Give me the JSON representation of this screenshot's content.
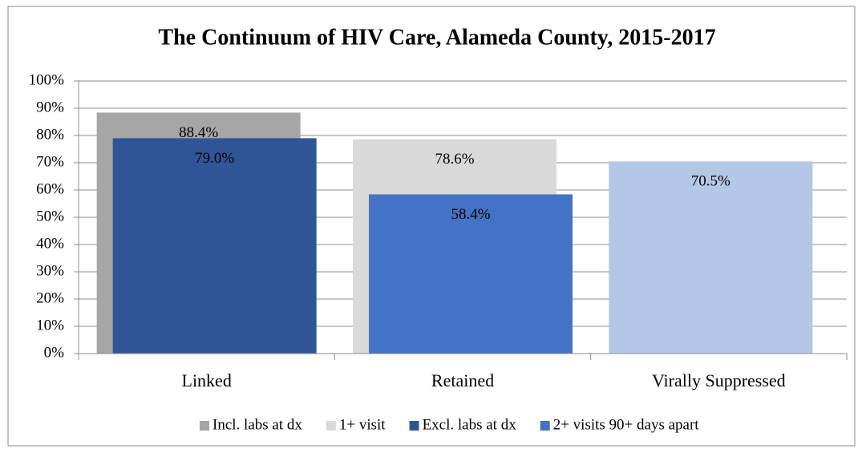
{
  "chart_data": {
    "type": "bar",
    "title": "The Continuum of  HIV Care, Alameda County, 2015-2017",
    "categories": [
      "Linked",
      "Retained",
      "Virally Suppressed"
    ],
    "series": [
      {
        "name": "Incl. labs at dx",
        "color": "#a6a6a6",
        "values": [
          88.4,
          null,
          null
        ],
        "value_labels": [
          "88.4%",
          null,
          null
        ]
      },
      {
        "name": "1+ visit",
        "color": "#d9d9d9",
        "values": [
          null,
          78.6,
          null
        ],
        "value_labels": [
          null,
          "78.6%",
          null
        ]
      },
      {
        "color": "#b4c7e7",
        "values": [
          null,
          null,
          70.5
        ],
        "value_labels": [
          null,
          null,
          "70.5%"
        ]
      },
      {
        "name": "Excl. labs at dx",
        "color": "#2f5597",
        "values": [
          79.0,
          null,
          null
        ],
        "value_labels": [
          "79.0%",
          null,
          null
        ]
      },
      {
        "name": "2+ visits 90+ days apart",
        "color": "#4472c4",
        "values": [
          null,
          58.4,
          null
        ],
        "value_labels": [
          null,
          "58.4%",
          null
        ]
      }
    ],
    "ylim": [
      0,
      100
    ],
    "yticks": [
      {
        "value": 0,
        "label": "0%"
      },
      {
        "value": 10,
        "label": "10%"
      },
      {
        "value": 20,
        "label": "20%"
      },
      {
        "value": 30,
        "label": "30%"
      },
      {
        "value": 40,
        "label": "40%"
      },
      {
        "value": 50,
        "label": "50%"
      },
      {
        "value": 60,
        "label": "60%"
      },
      {
        "value": 70,
        "label": "70%"
      },
      {
        "value": 80,
        "label": "80%"
      },
      {
        "value": 90,
        "label": "90%"
      },
      {
        "value": 100,
        "label": "100%"
      }
    ],
    "grid": true,
    "legend": "bottom"
  }
}
